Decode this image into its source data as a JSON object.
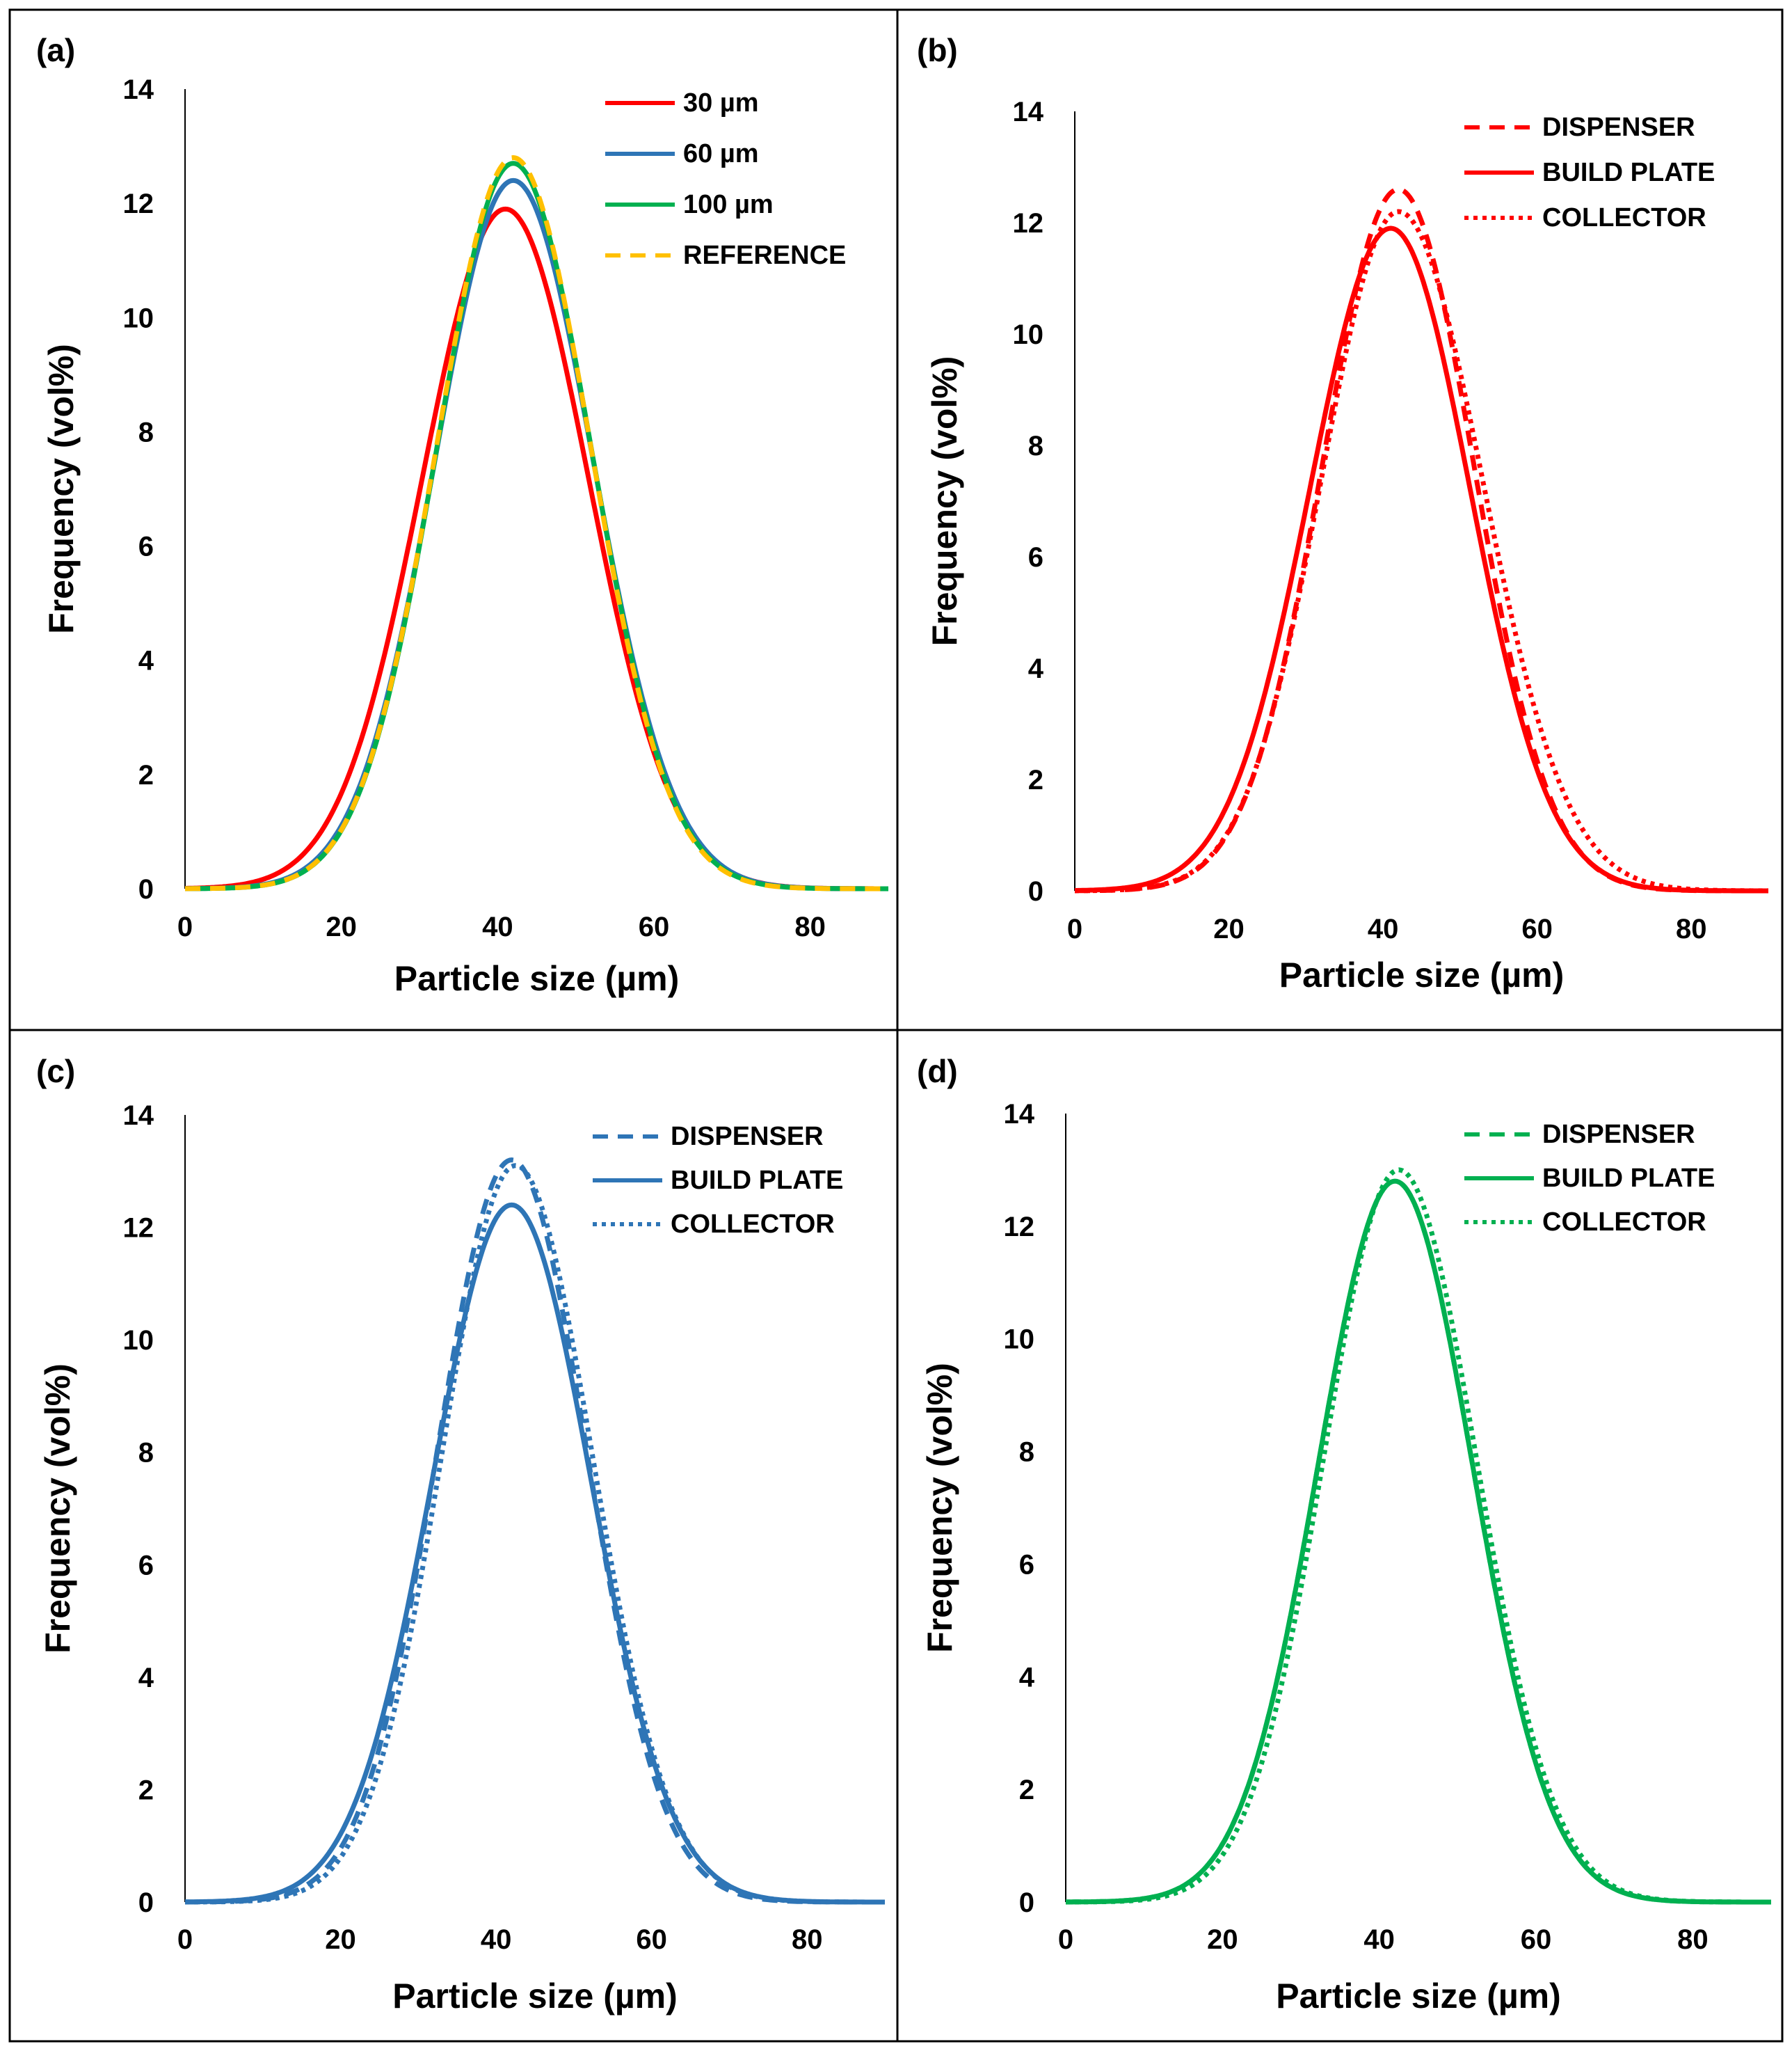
{
  "figure": {
    "panels": [
      {
        "id": "a",
        "label": "(a)",
        "chart_data": {
          "type": "line",
          "xlabel": "Particle size (µm)",
          "ylabel": "Frequency (vol%)",
          "xlim": [
            0,
            90
          ],
          "ylim": [
            0,
            14
          ],
          "xticks": [
            "0",
            "20",
            "40",
            "60",
            "80"
          ],
          "yticks": [
            "0",
            "2",
            "4",
            "6",
            "8",
            "10",
            "12",
            "14"
          ],
          "grid": false,
          "legend_position": "top-right",
          "series": [
            {
              "name": "30 µm",
              "color": "#ff0000",
              "dash": "solid",
              "peak_x": 41.0,
              "peak_y": 11.9,
              "sigma_left": 10.6,
              "sigma_right": 10.6
            },
            {
              "name": "60 µm",
              "color": "#2e75b6",
              "dash": "solid",
              "peak_x": 42.0,
              "peak_y": 12.4,
              "sigma_left": 10.0,
              "sigma_right": 10.2
            },
            {
              "name": "100 µm",
              "color": "#00b050",
              "dash": "solid",
              "peak_x": 42.0,
              "peak_y": 12.7,
              "sigma_left": 9.8,
              "sigma_right": 10.0
            },
            {
              "name": "REFERENCE",
              "color": "#ffc000",
              "dash": "dashed",
              "peak_x": 42.0,
              "peak_y": 12.8,
              "sigma_left": 9.8,
              "sigma_right": 9.9
            }
          ]
        }
      },
      {
        "id": "b",
        "label": "(b)",
        "chart_data": {
          "type": "line",
          "xlabel": "Particle size (µm)",
          "ylabel": "Frequency (vol%)",
          "xlim": [
            0,
            90
          ],
          "ylim": [
            0,
            14
          ],
          "xticks": [
            "0",
            "20",
            "40",
            "60",
            "80"
          ],
          "yticks": [
            "0",
            "2",
            "4",
            "6",
            "8",
            "10",
            "12",
            "14"
          ],
          "grid": false,
          "legend_position": "top-right",
          "series": [
            {
              "name": "DISPENSER",
              "color": "#ff0000",
              "dash": "dashed",
              "peak_x": 42.0,
              "peak_y": 12.6,
              "sigma_left": 9.9,
              "sigma_right": 9.8
            },
            {
              "name": "BUILD PLATE",
              "color": "#ff0000",
              "dash": "solid",
              "peak_x": 41.0,
              "peak_y": 11.9,
              "sigma_left": 10.5,
              "sigma_right": 10.3
            },
            {
              "name": "COLLECTOR",
              "color": "#ff0000",
              "dash": "dotted",
              "peak_x": 42.0,
              "peak_y": 12.2,
              "sigma_left": 10.0,
              "sigma_right": 10.9
            }
          ]
        }
      },
      {
        "id": "c",
        "label": "(c)",
        "chart_data": {
          "type": "line",
          "xlabel": "Particle size (µm)",
          "ylabel": "Frequency (vol%)",
          "xlim": [
            0,
            90
          ],
          "ylim": [
            0,
            14
          ],
          "xticks": [
            "0",
            "20",
            "40",
            "60",
            "80"
          ],
          "yticks": [
            "0",
            "2",
            "4",
            "6",
            "8",
            "10",
            "12",
            "14"
          ],
          "grid": false,
          "legend_position": "top-right",
          "series": [
            {
              "name": "DISPENSER",
              "color": "#2e75b6",
              "dash": "dashed",
              "peak_x": 42.0,
              "peak_y": 13.2,
              "sigma_left": 9.6,
              "sigma_right": 9.7
            },
            {
              "name": "BUILD PLATE",
              "color": "#2e75b6",
              "dash": "solid",
              "peak_x": 42.0,
              "peak_y": 12.4,
              "sigma_left": 10.2,
              "sigma_right": 10.2
            },
            {
              "name": "COLLECTOR",
              "color": "#2e75b6",
              "dash": "dotted",
              "peak_x": 42.5,
              "peak_y": 13.1,
              "sigma_left": 9.5,
              "sigma_right": 9.9
            }
          ]
        }
      },
      {
        "id": "d",
        "label": "(d)",
        "chart_data": {
          "type": "line",
          "xlabel": "Particle size (µm)",
          "ylabel": "Frequency (vol%)",
          "xlim": [
            0,
            90
          ],
          "ylim": [
            0,
            14
          ],
          "xticks": [
            "0",
            "20",
            "40",
            "60",
            "80"
          ],
          "yticks": [
            "0",
            "2",
            "4",
            "6",
            "8",
            "10",
            "12",
            "14"
          ],
          "grid": false,
          "legend_position": "top-right",
          "series": [
            {
              "name": "DISPENSER",
              "color": "#00b050",
              "dash": "dashed",
              "peak_x": 42.0,
              "peak_y": 12.8,
              "sigma_left": 9.8,
              "sigma_right": 9.9
            },
            {
              "name": "BUILD PLATE",
              "color": "#00b050",
              "dash": "solid",
              "peak_x": 42.0,
              "peak_y": 12.8,
              "sigma_left": 9.8,
              "sigma_right": 9.9
            },
            {
              "name": "COLLECTOR",
              "color": "#00b050",
              "dash": "dotted",
              "peak_x": 42.5,
              "peak_y": 13.0,
              "sigma_left": 9.6,
              "sigma_right": 9.9
            }
          ]
        }
      }
    ]
  }
}
